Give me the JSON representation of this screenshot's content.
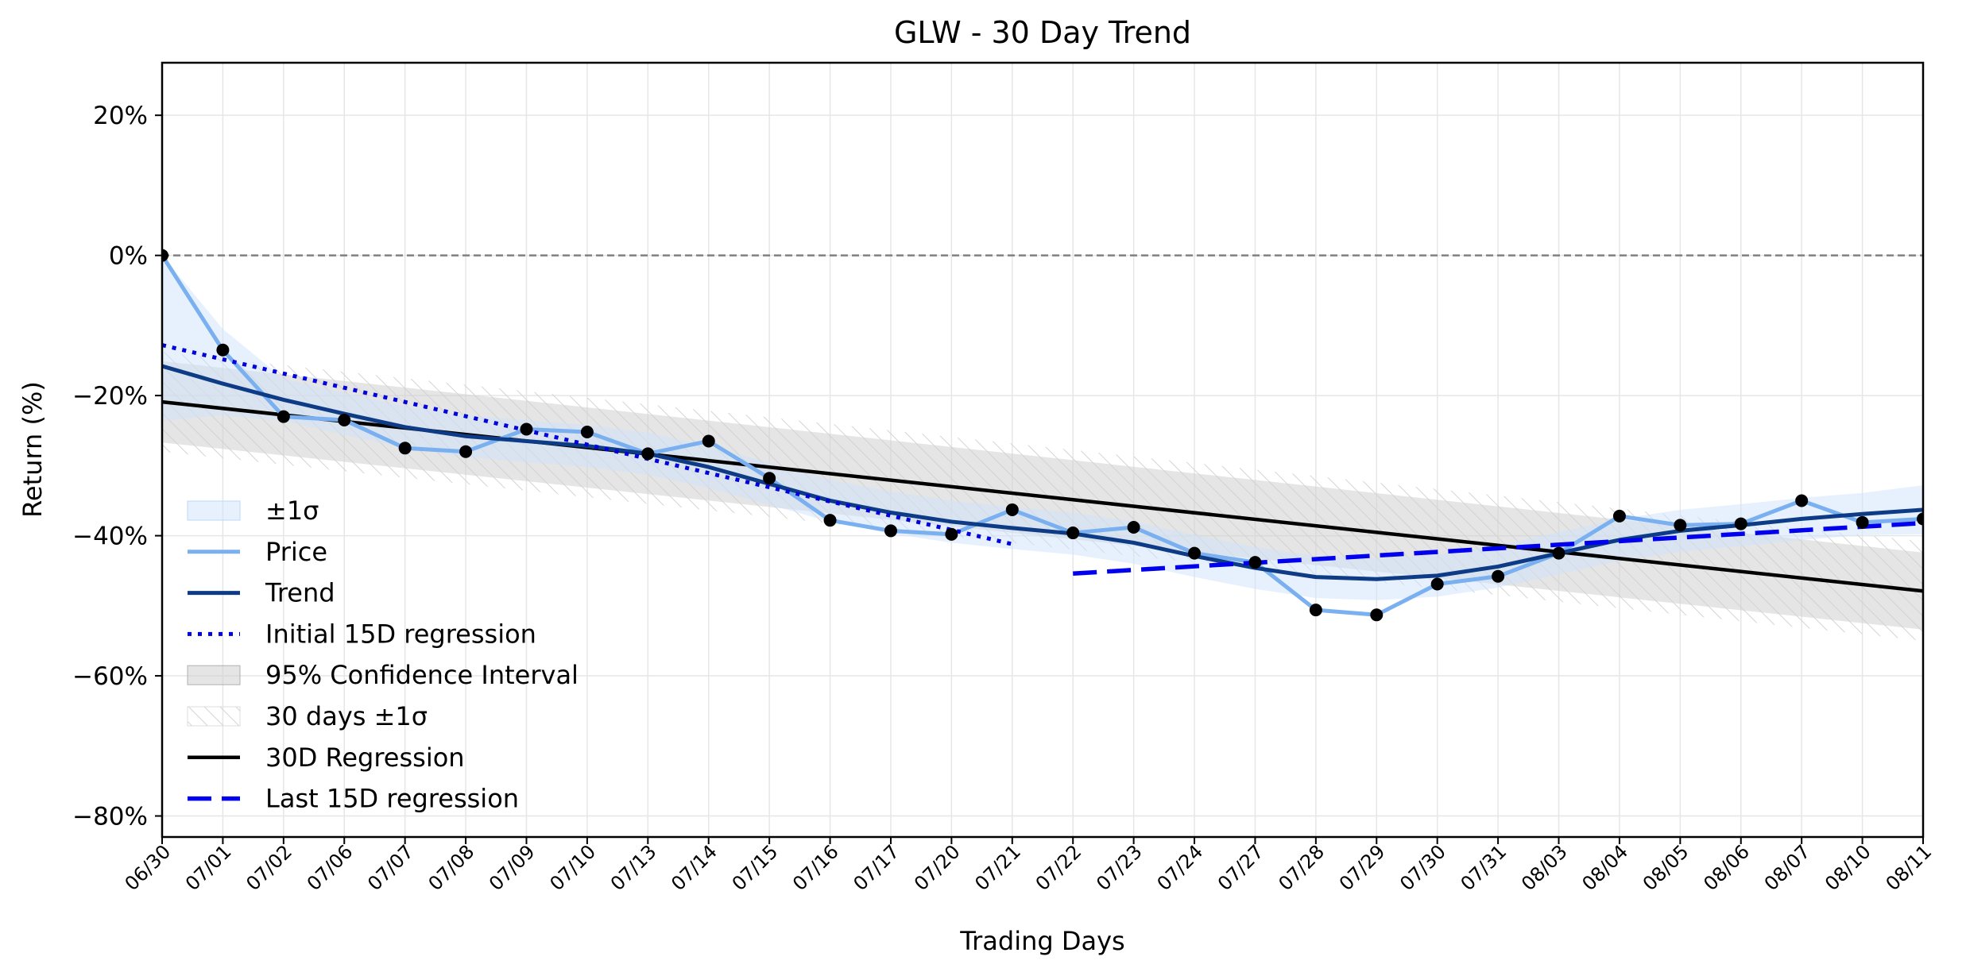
{
  "chart_data": {
    "type": "line",
    "title": "GLW - 30 Day Trend",
    "xlabel": "Trading Days",
    "ylabel": "Return (%)",
    "ylim": [
      -83,
      27.5
    ],
    "yticks": [
      20,
      0,
      -20,
      -40,
      -60,
      -80
    ],
    "ytick_labels": [
      "20%",
      "0%",
      "−20%",
      "−40%",
      "−60%",
      "−80%"
    ],
    "grid": true,
    "legend_position": "lower-left",
    "zero_line": 0,
    "categories": [
      "06/30",
      "07/01",
      "07/02",
      "07/06",
      "07/07",
      "07/08",
      "07/09",
      "07/10",
      "07/13",
      "07/14",
      "07/15",
      "07/16",
      "07/17",
      "07/20",
      "07/21",
      "07/22",
      "07/23",
      "07/24",
      "07/27",
      "07/28",
      "07/29",
      "07/30",
      "07/31",
      "08/03",
      "08/04",
      "08/05",
      "08/06",
      "08/07",
      "08/10",
      "08/11"
    ],
    "series": [
      {
        "name": "Price",
        "color": "#7ab0f0",
        "values": [
          0,
          -13.5,
          -23,
          -23.5,
          -27.5,
          -28,
          -24.8,
          -25.2,
          -28.3,
          -26.5,
          -31.8,
          -37.8,
          -39.3,
          -39.8,
          -36.3,
          -39.6,
          -38.8,
          -42.5,
          -43.8,
          -50.6,
          -51.3,
          -46.9,
          -45.8,
          -42.5,
          -37.2,
          -38.5,
          -38.3,
          -35,
          -38.1,
          -37.6
        ]
      },
      {
        "name": "Trend",
        "color": "#0d3b85",
        "values": [
          -15.8,
          -18.3,
          -20.6,
          -22.6,
          -24.5,
          -25.8,
          -26.5,
          -27.2,
          -28.3,
          -30.2,
          -32.6,
          -35,
          -36.7,
          -38,
          -38.9,
          -39.7,
          -41,
          -42.9,
          -44.6,
          -45.9,
          -46.2,
          -45.7,
          -44.4,
          -42.5,
          -40.6,
          -39.3,
          -38.5,
          -37.6,
          -36.9,
          -36.3
        ]
      },
      {
        "name": "Initial 15D regression",
        "color": "#0000dd",
        "x_range": [
          0,
          14
        ],
        "start": -12.8,
        "end": -41.2
      },
      {
        "name": "30D Regression",
        "color": "#000000",
        "x_range": [
          0,
          29
        ],
        "start": -20.9,
        "end": -47.9
      },
      {
        "name": "Last 15D regression",
        "color": "#0000ee",
        "x_range": [
          15,
          29
        ],
        "start": -45.4,
        "end": -38.2
      }
    ],
    "bands": [
      {
        "name": "±1σ",
        "color": "#cfe3fb",
        "upper": [
          0,
          -10.5,
          -17.6,
          -19.6,
          -21.5,
          -22.8,
          -23.5,
          -24.2,
          -25.3,
          -27.2,
          -29.6,
          -32,
          -33.7,
          -35,
          -35.9,
          -36.7,
          -38,
          -39.9,
          -41.6,
          -42.9,
          -43.2,
          -42.7,
          -41.4,
          -39.5,
          -37.6,
          -36.3,
          -35.5,
          -34.6,
          -33.9,
          -32.8
        ],
        "lower": [
          -23.6,
          -22.8,
          -23.6,
          -25.6,
          -27.5,
          -28.8,
          -29.5,
          -30.2,
          -31.3,
          -33.2,
          -35.6,
          -38,
          -39.7,
          -41,
          -41.9,
          -42.7,
          -44,
          -45.9,
          -47.6,
          -48.9,
          -49.2,
          -48.7,
          -47.4,
          -45.5,
          -43.6,
          -42.3,
          -41.5,
          -40.6,
          -39.9,
          -39.8
        ]
      },
      {
        "name": "95% Confidence Interval",
        "color": "#cfcfcf",
        "upper_start": -15.1,
        "upper_end": -42.4,
        "lower_start": -26.7,
        "lower_end": -53.4
      },
      {
        "name": "30 days ±1σ",
        "color": "#e6e6e6",
        "upper_start": -13.8,
        "upper_end": -40.8,
        "lower_start": -28,
        "lower_end": -55
      }
    ],
    "legend": [
      "±1σ",
      "Price",
      "Trend",
      "Initial 15D regression",
      "95% Confidence Interval",
      "30 days ±1σ",
      "30D Regression",
      "Last 15D regression"
    ]
  }
}
